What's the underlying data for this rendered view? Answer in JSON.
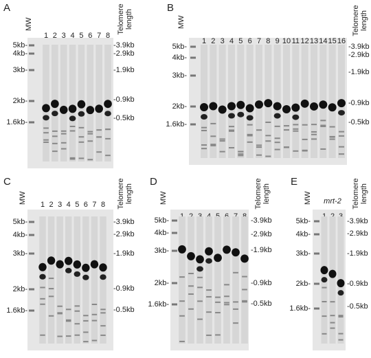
{
  "panels": [
    {
      "label": "A",
      "mw": "MW",
      "lanes": [
        "1",
        "2",
        "3",
        "4",
        "5",
        "6",
        "7",
        "8"
      ],
      "telomere": [
        "Telomere",
        "length"
      ],
      "left_markers": [
        "5kb-",
        "4kb-",
        "3kb-",
        "2kb-",
        "1.6kb-"
      ],
      "right_markers": [
        "-3.9kb",
        "-2.9kb",
        "-1.9kb",
        "-0.9kb",
        "-0.5kb"
      ]
    },
    {
      "label": "B",
      "mw": "MW",
      "lanes": [
        "1",
        "2",
        "3",
        "4",
        "5",
        "6",
        "7",
        "8",
        "9",
        "10",
        "11",
        "12",
        "13",
        "14",
        "15",
        "16"
      ],
      "telomere": [
        "Telomere",
        "length"
      ],
      "left_markers": [
        "5kb-",
        "4kb-",
        "3kb-",
        "2kb-",
        "1.6kb-"
      ],
      "right_markers": [
        "-3.9kb",
        "-2.9kb",
        "-1.9kb",
        "-0.9kb",
        "-0.5kb"
      ]
    },
    {
      "label": "C",
      "mw": "MW",
      "lanes": [
        "1",
        "2",
        "3",
        "4",
        "5",
        "6",
        "7",
        "8"
      ],
      "telomere": [
        "Telomere",
        "length"
      ],
      "left_markers": [
        "5kb-",
        "4kb-",
        "3kb-",
        "2kb-",
        "1.6kb-"
      ],
      "right_markers": [
        "-3.9kb",
        "-2.9kb",
        "-1.9kb",
        "-0.9kb",
        "-0.5kb"
      ]
    },
    {
      "label": "D",
      "mw": "MW",
      "lanes": [
        "1",
        "2",
        "3",
        "4",
        "5",
        "6",
        "7",
        "8"
      ],
      "telomere": [
        "Telomere",
        "length"
      ],
      "left_markers": [
        "5kb-",
        "4kb-",
        "3kb-",
        "2kb-",
        "1.6kb-"
      ],
      "right_markers": [
        "-3.9kb",
        "-2.9kb",
        "-1.9kb",
        "-0.9kb",
        "-0.5kb"
      ]
    },
    {
      "label": "E",
      "mw": "MW",
      "strain": "mrt-2",
      "lanes": [
        "1",
        "2",
        "3"
      ],
      "telomere": [
        "Telomere",
        "length"
      ],
      "left_markers": [
        "5kb-",
        "4kb-",
        "3kb-",
        "2kb-",
        "1.6kb-"
      ],
      "right_markers": [
        "-3.9kb",
        "-2.9kb",
        "-1.9kb",
        "-0.9kb",
        "-0.5kb"
      ]
    }
  ]
}
